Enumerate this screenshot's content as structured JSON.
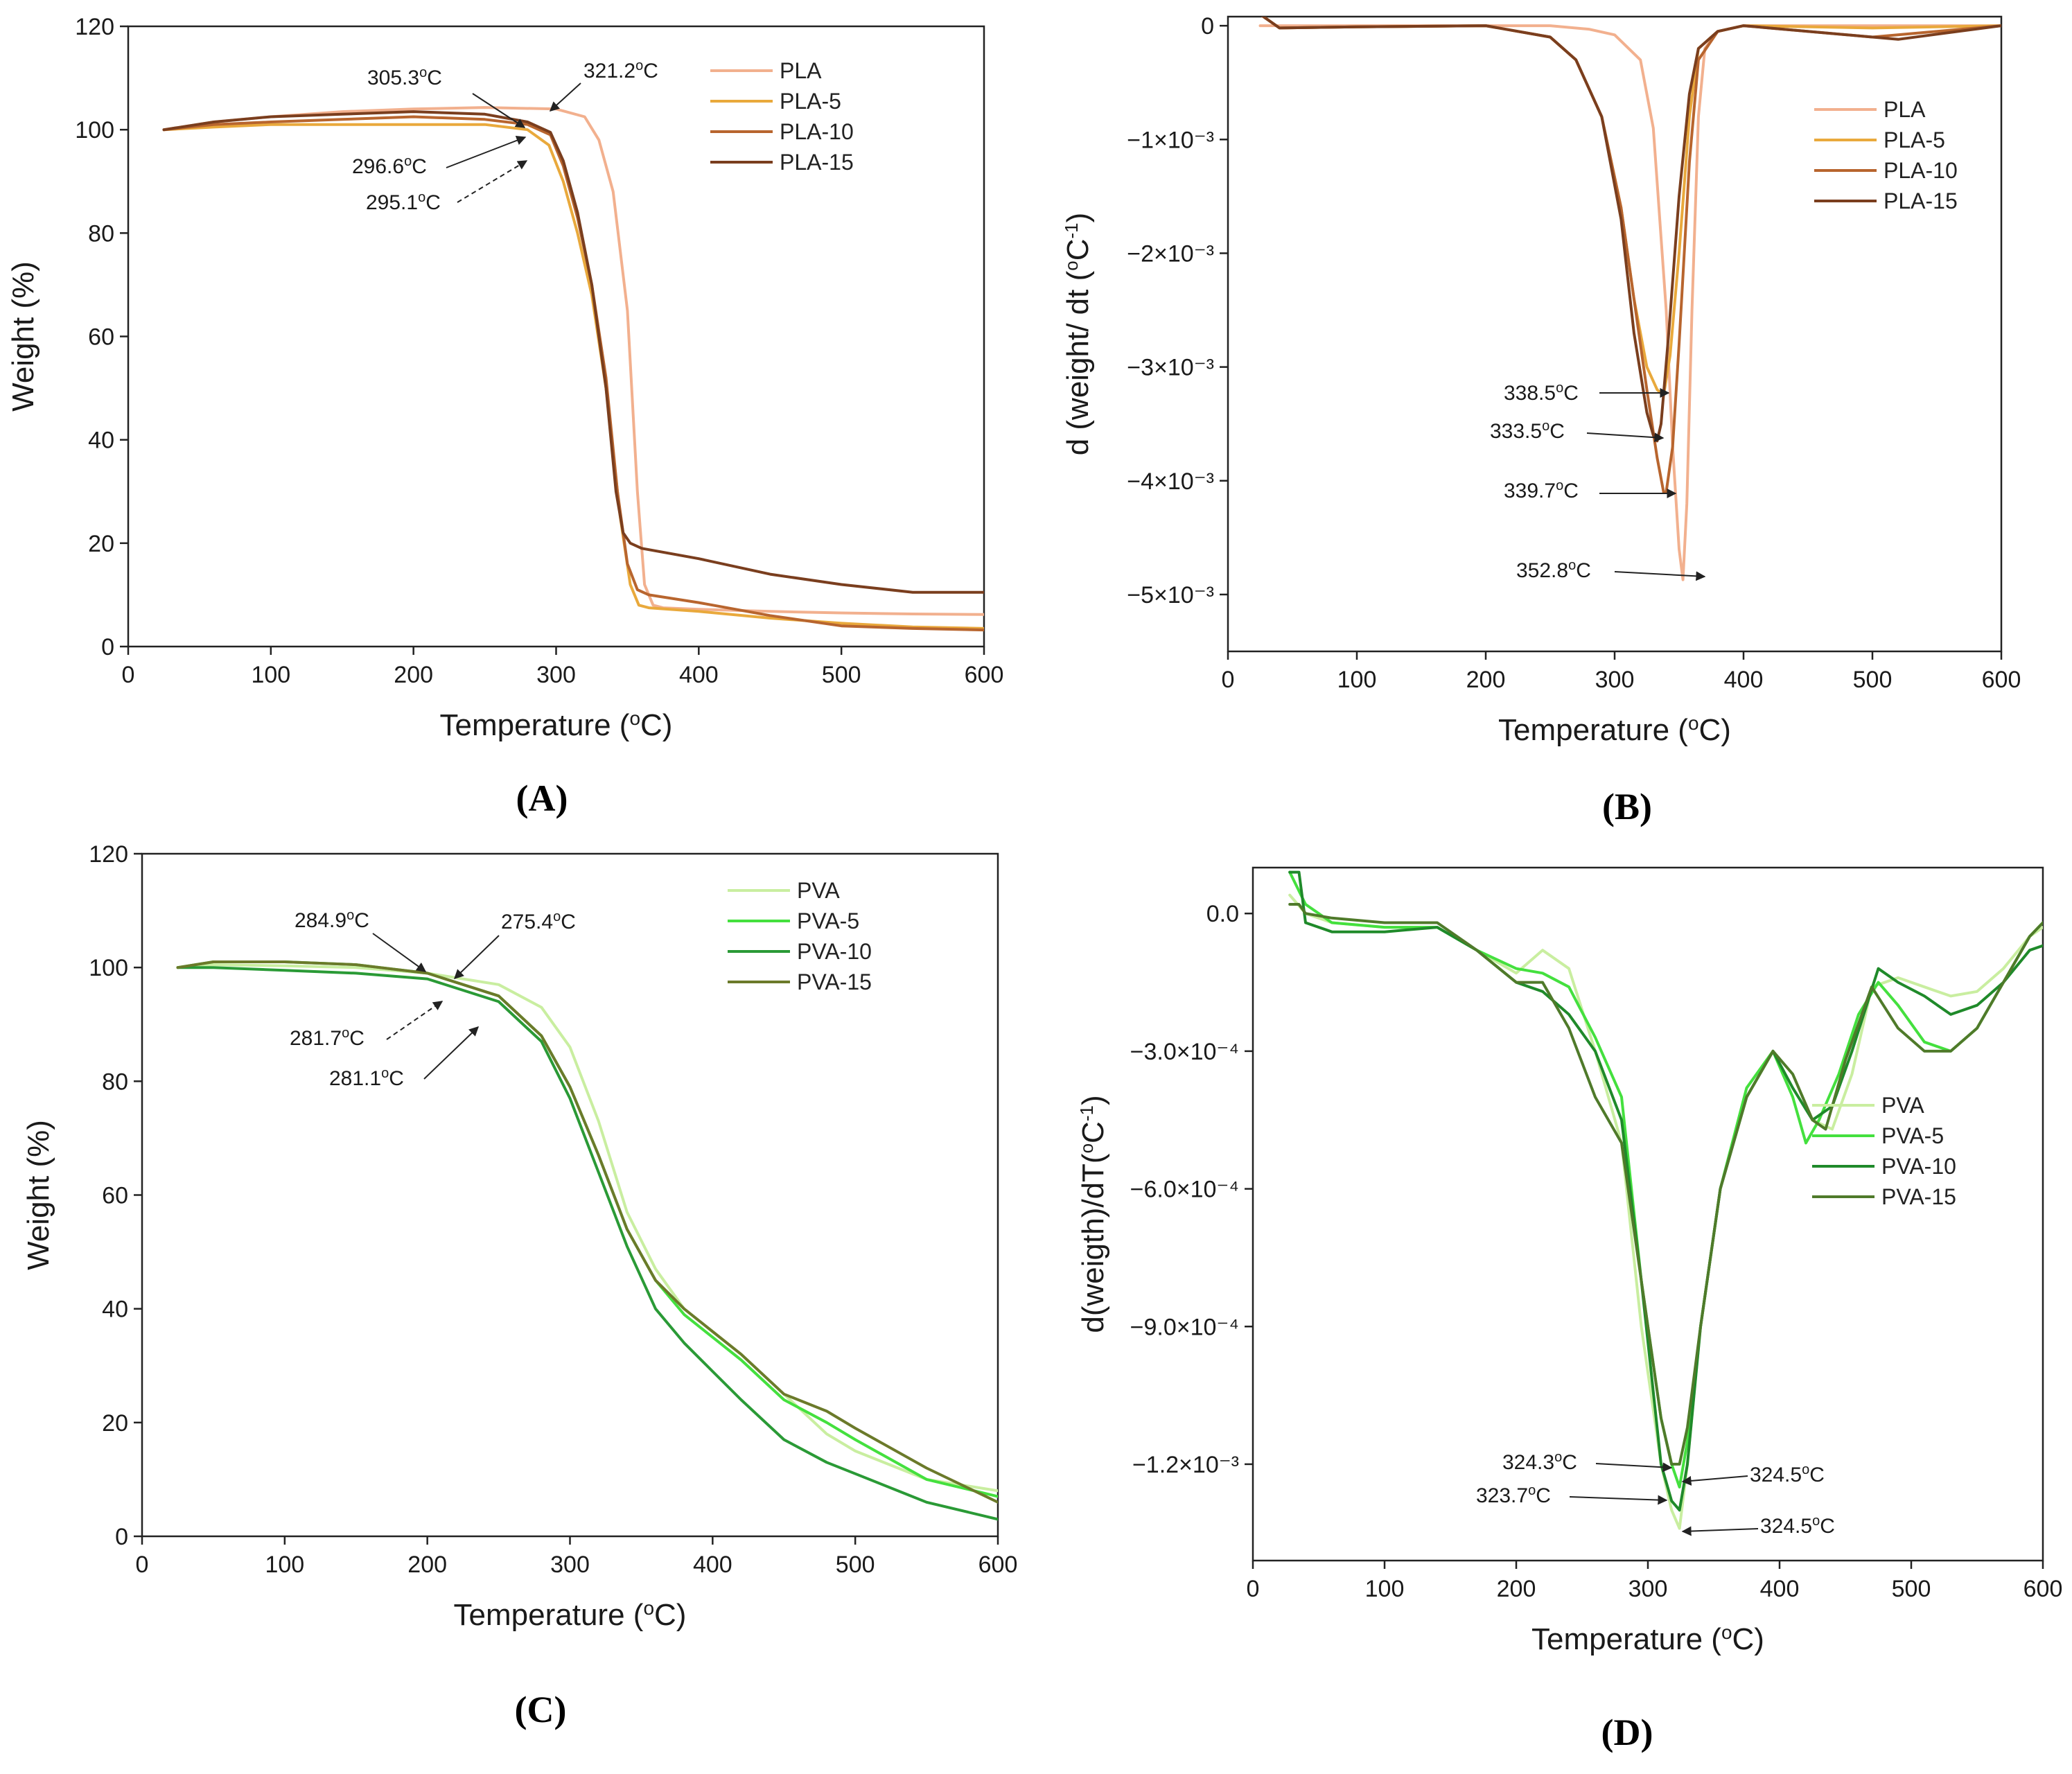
{
  "chart_data": [
    {
      "type": "line",
      "panel": "(A)",
      "title": "",
      "xlabel": "Temperature (°C)",
      "ylabel": "Weight (%)",
      "xlim": [
        0,
        600
      ],
      "ylim": [
        0,
        120
      ],
      "xticks": [
        "0",
        "100",
        "200",
        "300",
        "400",
        "500",
        "600"
      ],
      "yticks": [
        "0",
        "20",
        "40",
        "60",
        "80",
        "100",
        "120"
      ],
      "legend_position": "top-right",
      "series": [
        {
          "name": "PLA",
          "color": "#f2b08e",
          "x": [
            25,
            60,
            100,
            150,
            200,
            250,
            300,
            320,
            330,
            340,
            350,
            357,
            362,
            368,
            375,
            400,
            450,
            500,
            550,
            600
          ],
          "y": [
            100,
            101.5,
            102.5,
            103.5,
            104,
            104.3,
            104,
            102.5,
            98,
            88,
            65,
            30,
            12,
            8,
            7.5,
            7.2,
            6.8,
            6.5,
            6.3,
            6.2
          ]
        },
        {
          "name": "PLA-5",
          "color": "#e9a93c",
          "x": [
            25,
            60,
            100,
            150,
            200,
            250,
            280,
            295,
            305,
            315,
            325,
            335,
            345,
            352,
            358,
            365,
            400,
            450,
            500,
            550,
            600
          ],
          "y": [
            100,
            100.5,
            101,
            101,
            101,
            101,
            100,
            97,
            90,
            80,
            68,
            50,
            25,
            12,
            8,
            7.5,
            6.8,
            5.5,
            4.5,
            3.8,
            3.5
          ]
        },
        {
          "name": "PLA-10",
          "color": "#b8652e",
          "x": [
            25,
            60,
            100,
            150,
            200,
            250,
            280,
            296,
            305,
            315,
            325,
            335,
            343,
            350,
            357,
            365,
            400,
            450,
            500,
            550,
            600
          ],
          "y": [
            100,
            101,
            101.5,
            102,
            102.5,
            102,
            101,
            99,
            93,
            83,
            70,
            52,
            30,
            16,
            11,
            10,
            8.5,
            6,
            4,
            3.5,
            3.2
          ]
        },
        {
          "name": "PLA-15",
          "color": "#7a3e1e",
          "x": [
            25,
            60,
            100,
            150,
            200,
            250,
            280,
            296,
            305,
            315,
            325,
            335,
            342,
            347,
            352,
            360,
            400,
            450,
            500,
            550,
            600
          ],
          "y": [
            100,
            101.5,
            102.5,
            103,
            103.5,
            103,
            101.5,
            99.5,
            94,
            84,
            70,
            50,
            30,
            22,
            20,
            19,
            17,
            14,
            12,
            10.5,
            10.5
          ]
        }
      ],
      "annotations": [
        "305.3°C",
        "321.2°C",
        "296.6°C",
        "295.1°C"
      ]
    },
    {
      "type": "line",
      "panel": "(B)",
      "title": "",
      "xlabel": "Temperature (°C)",
      "ylabel": "d (weight/ dt (°C",
      "ylabel_sup": "-1",
      "ylabel_end": ")",
      "xlim": [
        0,
        600
      ],
      "ylim": [
        -0.0055,
        8e-05
      ],
      "xticks": [
        "0",
        "100",
        "200",
        "300",
        "400",
        "500",
        "600"
      ],
      "yticks": [
        {
          "value": 0,
          "label": "0"
        },
        {
          "value": -0.001,
          "label": "−1×10⁻³"
        },
        {
          "value": -0.002,
          "label": "−2×10⁻³"
        },
        {
          "value": -0.003,
          "label": "−3×10⁻³"
        },
        {
          "value": -0.004,
          "label": "−4×10⁻³"
        },
        {
          "value": -0.005,
          "label": "−5×10⁻³"
        }
      ],
      "legend_position": "top-right",
      "series": [
        {
          "name": "PLA",
          "color": "#f2b08e",
          "x": [
            25,
            100,
            200,
            250,
            280,
            300,
            320,
            330,
            340,
            345,
            350,
            353,
            356,
            360,
            365,
            370,
            380,
            400,
            500,
            600
          ],
          "y": [
            0,
            0,
            0,
            0,
            -3e-05,
            -8e-05,
            -0.0003,
            -0.0009,
            -0.0025,
            -0.0037,
            -0.0046,
            -0.00487,
            -0.0042,
            -0.0025,
            -0.0008,
            -0.0002,
            -5e-05,
            0,
            0,
            0
          ]
        },
        {
          "name": "PLA-5",
          "color": "#e9a93c",
          "x": [
            25,
            40,
            100,
            200,
            250,
            270,
            290,
            305,
            315,
            325,
            333,
            338,
            343,
            350,
            358,
            365,
            380,
            400,
            500,
            600
          ],
          "y": [
            0.0001,
            -2e-05,
            -1e-05,
            0,
            -0.0001,
            -0.0003,
            -0.0008,
            -0.0016,
            -0.0024,
            -0.003,
            -0.0032,
            -0.00325,
            -0.0029,
            -0.002,
            -0.0008,
            -0.0002,
            -5e-05,
            0,
            -2e-05,
            0
          ]
        },
        {
          "name": "PLA-10",
          "color": "#b8652e",
          "x": [
            25,
            40,
            100,
            200,
            250,
            270,
            290,
            305,
            315,
            325,
            333,
            338,
            340,
            345,
            350,
            358,
            365,
            380,
            400,
            500,
            600
          ],
          "y": [
            0.0001,
            -2e-05,
            -1e-05,
            0,
            -0.0001,
            -0.0003,
            -0.0008,
            -0.0016,
            -0.0024,
            -0.0032,
            -0.0038,
            -0.0041,
            -0.0041,
            -0.0037,
            -0.0028,
            -0.0012,
            -0.0003,
            -5e-05,
            0,
            -0.0001,
            0
          ]
        },
        {
          "name": "PLA-15",
          "color": "#7a3e1e",
          "x": [
            25,
            40,
            100,
            200,
            250,
            270,
            290,
            305,
            315,
            325,
            330,
            333,
            336,
            342,
            350,
            358,
            365,
            380,
            400,
            500,
            520,
            600
          ],
          "y": [
            0.0001,
            -2e-05,
            -1e-05,
            0,
            -0.0001,
            -0.0003,
            -0.0008,
            -0.0017,
            -0.0027,
            -0.0034,
            -0.0036,
            -0.00365,
            -0.0035,
            -0.0027,
            -0.0015,
            -0.0006,
            -0.0002,
            -5e-05,
            0,
            -0.0001,
            -0.00012,
            0
          ]
        }
      ],
      "annotations": [
        "338.5°C",
        "333.5°C",
        "339.7°C",
        "352.8°C"
      ]
    },
    {
      "type": "line",
      "panel": "(C)",
      "title": "",
      "xlabel": "Temperature (°C)",
      "ylabel": "Weight (%)",
      "xlim": [
        0,
        600
      ],
      "ylim": [
        0,
        120
      ],
      "xticks": [
        "0",
        "100",
        "200",
        "300",
        "400",
        "500",
        "600"
      ],
      "yticks": [
        "0",
        "20",
        "40",
        "60",
        "80",
        "100",
        "120"
      ],
      "legend_position": "top-right",
      "series": [
        {
          "name": "PVA",
          "color": "#c9eea0",
          "x": [
            25,
            50,
            100,
            150,
            200,
            250,
            280,
            300,
            320,
            340,
            360,
            380,
            400,
            420,
            450,
            480,
            500,
            550,
            600
          ],
          "y": [
            100,
            100.5,
            100.3,
            100,
            99,
            97,
            93,
            86,
            73,
            57,
            47,
            40,
            36,
            32,
            25,
            18,
            15,
            10,
            8
          ]
        },
        {
          "name": "PVA-5",
          "color": "#44e03e",
          "x": [
            25,
            50,
            100,
            150,
            200,
            250,
            280,
            300,
            320,
            340,
            360,
            380,
            400,
            420,
            450,
            480,
            500,
            550,
            600
          ],
          "y": [
            100,
            101,
            101,
            100.5,
            99,
            95,
            88,
            79,
            67,
            54,
            45,
            39,
            35,
            31,
            24,
            20,
            17,
            10,
            7
          ]
        },
        {
          "name": "PVA-10",
          "color": "#2a9a36",
          "x": [
            25,
            50,
            100,
            150,
            200,
            250,
            280,
            300,
            320,
            340,
            360,
            380,
            400,
            420,
            450,
            480,
            500,
            550,
            600
          ],
          "y": [
            100,
            100,
            99.5,
            99,
            98,
            94,
            87,
            77,
            64,
            51,
            40,
            34,
            29,
            24,
            17,
            13,
            11,
            6,
            3
          ]
        },
        {
          "name": "PVA-15",
          "color": "#6b7a2a",
          "x": [
            25,
            50,
            100,
            150,
            200,
            250,
            280,
            300,
            320,
            340,
            360,
            380,
            400,
            420,
            450,
            480,
            500,
            550,
            600
          ],
          "y": [
            100,
            101,
            101,
            100.5,
            99,
            95,
            88,
            79,
            67,
            54,
            45,
            40,
            36,
            32,
            25,
            22,
            19,
            12,
            6
          ]
        }
      ],
      "annotations": [
        "284.9°C",
        "275.4°C",
        "281.7°C",
        "281.1°C"
      ]
    },
    {
      "type": "line",
      "panel": "(D)",
      "title": "",
      "xlabel": "Temperature (°C)",
      "ylabel": "d(weigth)/dT(°C",
      "ylabel_sup": "-1",
      "ylabel_end": ")",
      "xlim": [
        0,
        600
      ],
      "ylim": [
        -0.00141,
        0.0001
      ],
      "xticks": [
        "0",
        "100",
        "200",
        "300",
        "400",
        "500",
        "600"
      ],
      "yticks": [
        {
          "value": 0,
          "label": "0.0"
        },
        {
          "value": -0.0003,
          "label": "−3.0×10⁻⁴"
        },
        {
          "value": -0.0006,
          "label": "−6.0×10⁻⁴"
        },
        {
          "value": -0.0009,
          "label": "−9.0×10⁻⁴"
        },
        {
          "value": -0.0012,
          "label": "−1.2×10⁻³"
        }
      ],
      "legend_position": "right",
      "series": [
        {
          "name": "PVA",
          "color": "#c9eea0",
          "x": [
            28,
            40,
            60,
            100,
            140,
            170,
            200,
            220,
            240,
            260,
            280,
            295,
            310,
            318,
            324,
            330,
            340,
            355,
            375,
            395,
            410,
            425,
            440,
            455,
            470,
            490,
            510,
            530,
            550,
            570,
            590,
            600
          ],
          "y": [
            4e-05,
            0,
            -2e-05,
            -3e-05,
            -3e-05,
            -8e-05,
            -0.00013,
            -8e-05,
            -0.00012,
            -0.0003,
            -0.0005,
            -0.0009,
            -0.0012,
            -0.0013,
            -0.00134,
            -0.0012,
            -0.0009,
            -0.0006,
            -0.00038,
            -0.0003,
            -0.00035,
            -0.00045,
            -0.00047,
            -0.00035,
            -0.00016,
            -0.00014,
            -0.00016,
            -0.00018,
            -0.00017,
            -0.00012,
            -5e-05,
            -3e-05
          ]
        },
        {
          "name": "PVA-5",
          "color": "#44e03e",
          "x": [
            28,
            40,
            60,
            100,
            140,
            170,
            200,
            220,
            240,
            260,
            280,
            295,
            310,
            318,
            324,
            330,
            340,
            355,
            375,
            395,
            410,
            420,
            430,
            445,
            460,
            475,
            490,
            510,
            530,
            550,
            570,
            590,
            600
          ],
          "y": [
            9e-05,
            2e-05,
            -2e-05,
            -3e-05,
            -3e-05,
            -8e-05,
            -0.00012,
            -0.00013,
            -0.00016,
            -0.00027,
            -0.0004,
            -0.0008,
            -0.0011,
            -0.0012,
            -0.00125,
            -0.00115,
            -0.0009,
            -0.0006,
            -0.00038,
            -0.0003,
            -0.0004,
            -0.0005,
            -0.00045,
            -0.00035,
            -0.00022,
            -0.00015,
            -0.0002,
            -0.00028,
            -0.0003,
            -0.00025,
            -0.00015,
            -5e-05,
            -2e-05
          ]
        },
        {
          "name": "PVA-10",
          "color": "#1f8a2a",
          "x": [
            28,
            35,
            40,
            60,
            100,
            140,
            170,
            200,
            220,
            240,
            260,
            280,
            295,
            310,
            318,
            324,
            330,
            340,
            355,
            375,
            395,
            410,
            425,
            440,
            455,
            475,
            490,
            510,
            530,
            550,
            570,
            590,
            600
          ],
          "y": [
            9e-05,
            9e-05,
            -2e-05,
            -4e-05,
            -4e-05,
            -3e-05,
            -8e-05,
            -0.00015,
            -0.00017,
            -0.00022,
            -0.0003,
            -0.00045,
            -0.0008,
            -0.0012,
            -0.00128,
            -0.0013,
            -0.0012,
            -0.0009,
            -0.0006,
            -0.0004,
            -0.0003,
            -0.00038,
            -0.00045,
            -0.00042,
            -0.0003,
            -0.00012,
            -0.00015,
            -0.00018,
            -0.00022,
            -0.0002,
            -0.00015,
            -8e-05,
            -7e-05
          ]
        },
        {
          "name": "PVA-15",
          "color": "#4f7a2a",
          "x": [
            28,
            35,
            40,
            60,
            100,
            140,
            170,
            200,
            220,
            240,
            260,
            280,
            295,
            310,
            318,
            324,
            330,
            340,
            355,
            375,
            395,
            410,
            425,
            435,
            450,
            470,
            490,
            510,
            530,
            550,
            570,
            590,
            600
          ],
          "y": [
            2e-05,
            2e-05,
            0,
            -1e-05,
            -2e-05,
            -2e-05,
            -8e-05,
            -0.00015,
            -0.00015,
            -0.00025,
            -0.0004,
            -0.0005,
            -0.0008,
            -0.0011,
            -0.0012,
            -0.0012,
            -0.00112,
            -0.0009,
            -0.0006,
            -0.0004,
            -0.0003,
            -0.00035,
            -0.00045,
            -0.00047,
            -0.00032,
            -0.00016,
            -0.00025,
            -0.0003,
            -0.0003,
            -0.00025,
            -0.00015,
            -5e-05,
            -2e-05
          ]
        }
      ],
      "annotations": [
        "324.3°C",
        "324.5°C",
        "323.7°C",
        "324.5°C"
      ]
    }
  ]
}
